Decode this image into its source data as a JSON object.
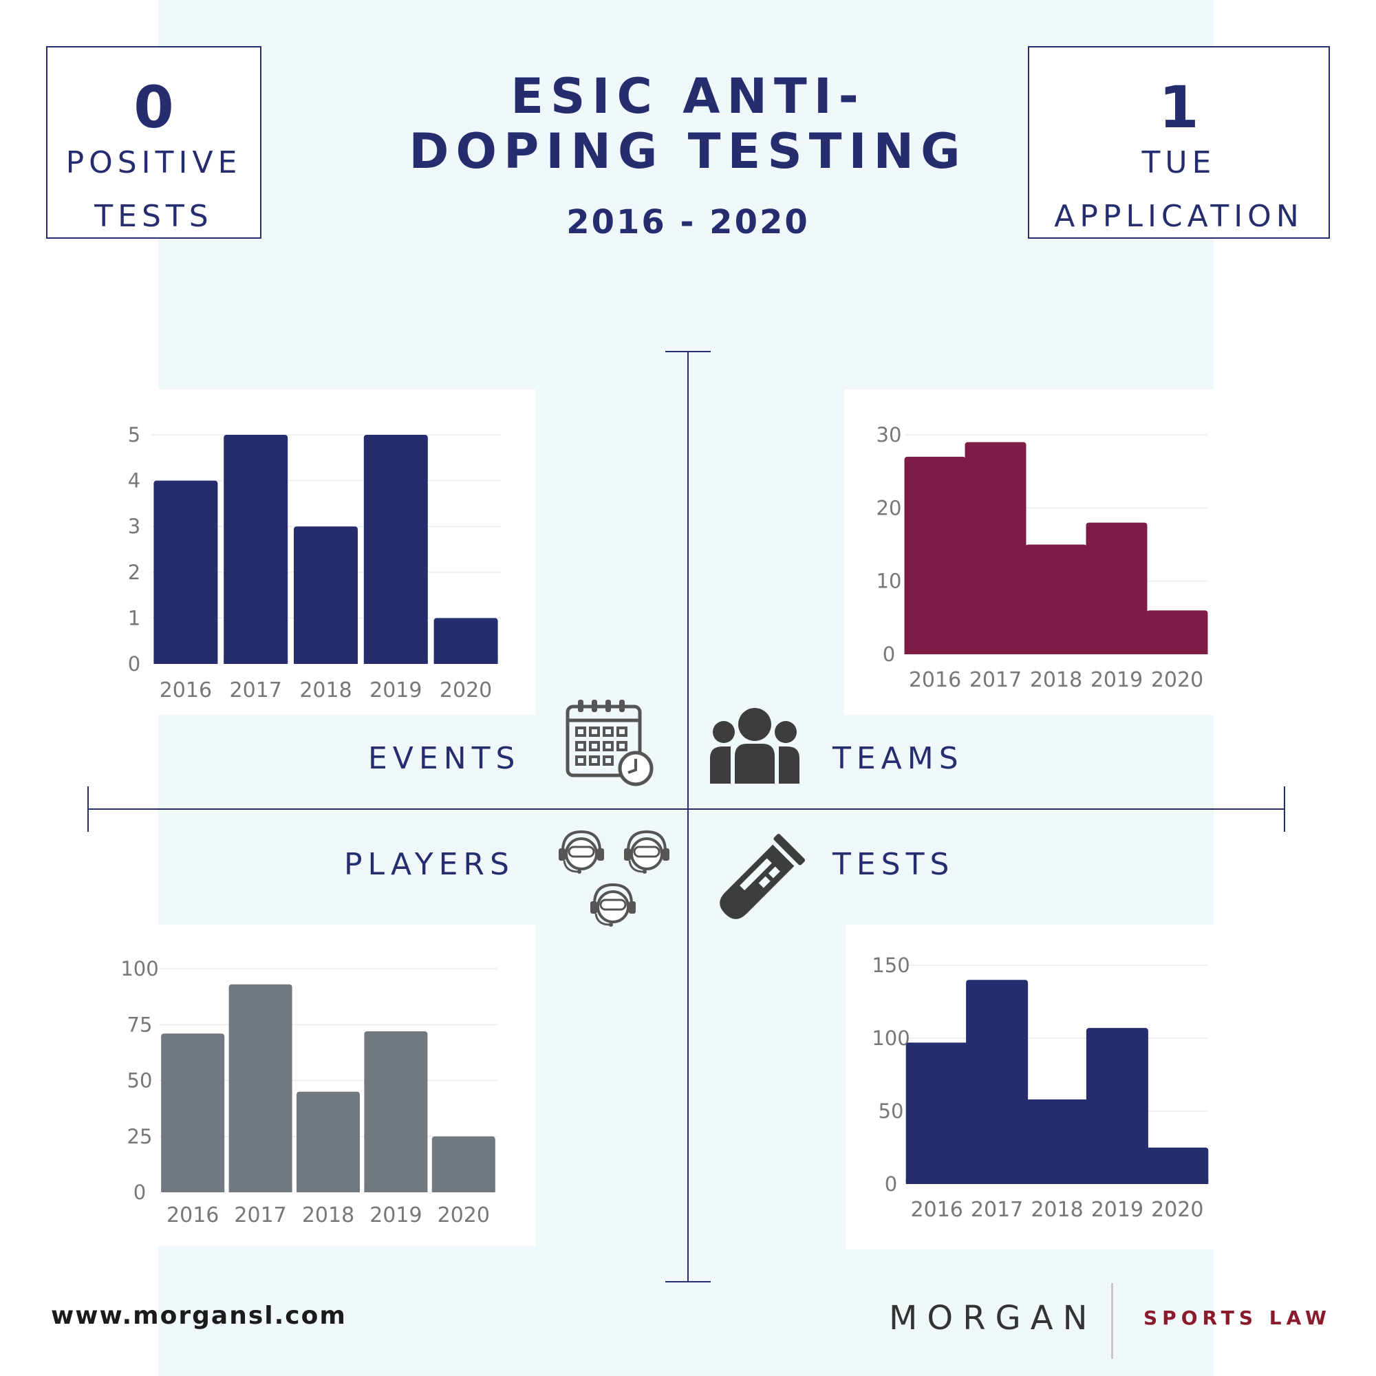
{
  "header": {
    "title_line1": "ESIC ANTI-",
    "title_line2": "DOPING TESTING",
    "years": "2016 - 2020"
  },
  "stats": {
    "left": {
      "number": "0",
      "line1": "POSITIVE",
      "line2": "TESTS"
    },
    "right": {
      "number": "1",
      "line1": "TUE",
      "line2": "APPLICATION"
    }
  },
  "quadrants": {
    "events": "EVENTS",
    "teams": "TEAMS",
    "players": "PLAYERS",
    "tests": "TESTS"
  },
  "icons": {
    "events": "calendar-clock-icon",
    "teams": "group-people-icon",
    "players": "gamer-headset-icon",
    "tests": "test-tube-icon"
  },
  "colors": {
    "navy": "#262d6f",
    "maroon": "#7d1d46",
    "gray": "#727880",
    "background_band": "#f0f8fb"
  },
  "chart_data": [
    {
      "id": "events",
      "type": "bar",
      "title": "EVENTS",
      "categories": [
        "2016",
        "2017",
        "2018",
        "2019",
        "2020"
      ],
      "values": [
        4,
        5,
        3,
        5,
        1
      ],
      "yticks": [
        0,
        1,
        2,
        3,
        4,
        5
      ],
      "ylim": [
        0,
        5
      ],
      "color": "#262d6f"
    },
    {
      "id": "teams",
      "type": "bar",
      "title": "TEAMS",
      "categories": [
        "2016",
        "2017",
        "2018",
        "2019",
        "2020"
      ],
      "values": [
        27,
        29,
        15,
        18,
        6
      ],
      "yticks": [
        0,
        10,
        20,
        30
      ],
      "ylim": [
        0,
        30
      ],
      "color": "#7d1d46"
    },
    {
      "id": "players",
      "type": "bar",
      "title": "PLAYERS",
      "categories": [
        "2016",
        "2017",
        "2018",
        "2019",
        "2020"
      ],
      "values": [
        71,
        93,
        45,
        72,
        25
      ],
      "yticks": [
        0,
        25,
        50,
        75,
        100
      ],
      "ylim": [
        0,
        100
      ],
      "color": "#727880"
    },
    {
      "id": "tests",
      "type": "bar",
      "title": "TESTS",
      "categories": [
        "2016",
        "2017",
        "2018",
        "2019",
        "2020"
      ],
      "values": [
        97,
        140,
        58,
        107,
        25
      ],
      "yticks": [
        0,
        50,
        100,
        150
      ],
      "ylim": [
        0,
        150
      ],
      "color": "#262d6f"
    }
  ],
  "footer": {
    "url": "www.morgansl.com",
    "brand": "MORGAN",
    "brand_sub": "SPORTS LAW"
  }
}
